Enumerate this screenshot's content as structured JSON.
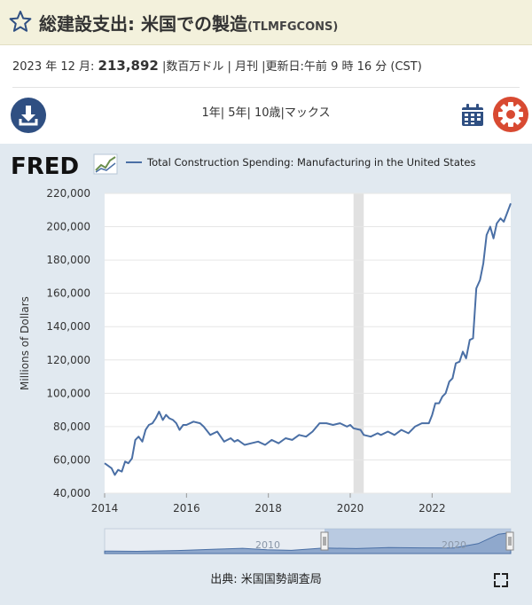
{
  "header": {
    "title": "総建設支出: 米国での製造",
    "series_id": "(TLMFGCONS)"
  },
  "meta": {
    "date": "2023 年 12 月:",
    "value": "213,892",
    "details": "|数百万ドル | 月刊 |更新日:午前 9 時 16 分 (CST)"
  },
  "controls": {
    "ranges": "1年| 5年| 10歳|マックス"
  },
  "brand": {
    "logo": "FRED"
  },
  "source": "出典: 米国国勢調査局",
  "colors": {
    "line": "#4a6fa5",
    "plot_bg": "#ffffff",
    "chart_bg": "#e1e9f0",
    "recession": "#e1e1e1"
  },
  "chart_data": {
    "type": "line",
    "title": "",
    "legend": "Total Construction Spending: Manufacturing in the United States",
    "xlabel": "",
    "ylabel": "Millions of Dollars",
    "ylim": [
      40000,
      220000
    ],
    "xlim": [
      2014.0,
      2023.92
    ],
    "y_ticks": [
      40000,
      60000,
      80000,
      100000,
      120000,
      140000,
      160000,
      180000,
      200000,
      220000
    ],
    "y_tick_labels": [
      "40,000",
      "60,000",
      "80,000",
      "100,000",
      "120,000",
      "140,000",
      "160,000",
      "180,000",
      "200,000",
      "220,000"
    ],
    "x_ticks": [
      2014,
      2016,
      2018,
      2020,
      2022
    ],
    "x_tick_labels": [
      "2014",
      "2016",
      "2018",
      "2020",
      "2022"
    ],
    "recession": [
      2020.08,
      2020.33
    ],
    "navigator_labels": [
      "2010",
      "2020"
    ],
    "series": [
      {
        "name": "Total Construction Spending: Manufacturing in the United States",
        "x": [
          2014.0,
          2014.17,
          2014.25,
          2014.33,
          2014.42,
          2014.5,
          2014.58,
          2014.67,
          2014.75,
          2014.83,
          2014.92,
          2015.0,
          2015.08,
          2015.17,
          2015.25,
          2015.33,
          2015.42,
          2015.5,
          2015.58,
          2015.67,
          2015.75,
          2015.83,
          2015.92,
          2016.0,
          2016.17,
          2016.33,
          2016.42,
          2016.58,
          2016.75,
          2016.92,
          2017.08,
          2017.17,
          2017.25,
          2017.42,
          2017.58,
          2017.75,
          2017.92,
          2018.08,
          2018.25,
          2018.42,
          2018.58,
          2018.75,
          2018.92,
          2019.08,
          2019.25,
          2019.42,
          2019.58,
          2019.75,
          2019.92,
          2020.0,
          2020.08,
          2020.25,
          2020.33,
          2020.5,
          2020.67,
          2020.75,
          2020.92,
          2021.08,
          2021.25,
          2021.42,
          2021.58,
          2021.75,
          2021.92,
          2022.0,
          2022.08,
          2022.17,
          2022.25,
          2022.33,
          2022.42,
          2022.5,
          2022.58,
          2022.67,
          2022.75,
          2022.83,
          2022.92,
          2023.0,
          2023.08,
          2023.17,
          2023.25,
          2023.33,
          2023.42,
          2023.5,
          2023.58,
          2023.67,
          2023.75,
          2023.83,
          2023.92
        ],
        "values": [
          58000,
          55000,
          51000,
          54000,
          53000,
          59000,
          58000,
          61000,
          72000,
          74000,
          71000,
          78000,
          81000,
          82000,
          85000,
          89000,
          84000,
          87000,
          85000,
          84000,
          82000,
          78000,
          81000,
          81000,
          83000,
          82000,
          80000,
          75000,
          77000,
          71000,
          73000,
          71000,
          72000,
          69000,
          70000,
          71000,
          69000,
          72000,
          70000,
          73000,
          72000,
          75000,
          74000,
          77000,
          82000,
          82000,
          81000,
          82000,
          80000,
          81000,
          79000,
          78000,
          75000,
          74000,
          76000,
          75000,
          77000,
          75000,
          78000,
          76000,
          80000,
          82000,
          82000,
          87000,
          94000,
          94000,
          98000,
          100000,
          107000,
          109000,
          118000,
          119000,
          125000,
          121000,
          132000,
          133000,
          163000,
          168000,
          178000,
          195000,
          200000,
          193000,
          202000,
          205000,
          203000,
          208000,
          214000
        ]
      }
    ]
  }
}
